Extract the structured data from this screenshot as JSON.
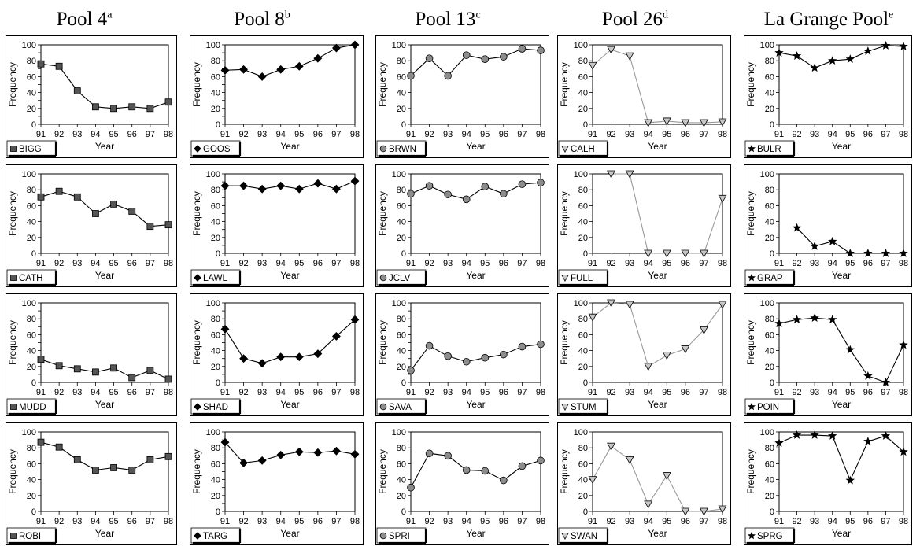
{
  "pools": [
    {
      "name": "Pool 4",
      "note": "a"
    },
    {
      "name": "Pool 8",
      "note": "b"
    },
    {
      "name": "Pool 13",
      "note": "c"
    },
    {
      "name": "Pool 26",
      "note": "d"
    },
    {
      "name": "La Grange Pool",
      "note": "e"
    }
  ],
  "colors": {
    "square": "#555555",
    "diamond": "#000000",
    "circle": "#8c8c8c",
    "triangle": "#c8c8c8",
    "star": "#000000",
    "line_dark": "#000000",
    "line_grey": "#999999"
  },
  "chart_data": [
    {
      "type": "line",
      "pool": 0,
      "row": 0,
      "marker": "square",
      "legend": "BIGG",
      "x": [
        91,
        92,
        93,
        94,
        95,
        96,
        97,
        98
      ],
      "values": [
        76,
        73,
        42,
        22,
        20,
        22,
        20,
        28
      ],
      "xlabel": "Year",
      "ylabel": "Frequency",
      "ylim": [
        0,
        100
      ],
      "yticks": [
        0,
        10,
        20,
        30,
        40,
        50,
        60,
        70,
        80,
        90,
        100
      ],
      "yticklabels": [
        "0",
        "",
        "20",
        "",
        "40",
        "",
        "60",
        "",
        "80",
        "",
        "100"
      ]
    },
    {
      "type": "line",
      "pool": 0,
      "row": 1,
      "marker": "square",
      "legend": "CATH",
      "x": [
        91,
        92,
        93,
        94,
        95,
        96,
        97,
        98
      ],
      "values": [
        71,
        78,
        71,
        50,
        62,
        53,
        34,
        36
      ],
      "xlabel": "Year",
      "ylabel": "Frequency",
      "ylim": [
        0,
        100
      ],
      "yticks": [
        0,
        20,
        40,
        60,
        80,
        100
      ],
      "yticklabels": [
        "0",
        "20",
        "40",
        "60",
        "80",
        "100"
      ]
    },
    {
      "type": "line",
      "pool": 0,
      "row": 2,
      "marker": "square",
      "legend": "MUDD",
      "x": [
        91,
        92,
        93,
        94,
        95,
        96,
        97,
        98
      ],
      "values": [
        29,
        21,
        17,
        13,
        18,
        6,
        15,
        4
      ],
      "xlabel": "Year",
      "ylabel": "Frequency",
      "ylim": [
        0,
        100
      ],
      "yticks": [
        0,
        10,
        20,
        30,
        40,
        50,
        60,
        70,
        80,
        90,
        100
      ],
      "yticklabels": [
        "0",
        "",
        "20",
        "",
        "40",
        "",
        "60",
        "",
        "80",
        "",
        "100"
      ]
    },
    {
      "type": "line",
      "pool": 0,
      "row": 3,
      "marker": "square",
      "legend": "ROBI",
      "x": [
        91,
        92,
        93,
        94,
        95,
        96,
        97,
        98
      ],
      "values": [
        87,
        81,
        65,
        52,
        55,
        52,
        65,
        69
      ],
      "xlabel": "Year",
      "ylabel": "Frequency",
      "ylim": [
        0,
        100
      ],
      "yticks": [
        0,
        20,
        40,
        60,
        80,
        100
      ],
      "yticklabels": [
        "0",
        "20",
        "40",
        "60",
        "80",
        "100"
      ]
    },
    {
      "type": "line",
      "pool": 1,
      "row": 0,
      "marker": "diamond",
      "legend": "GOOS",
      "x": [
        91,
        92,
        93,
        94,
        95,
        96,
        97,
        98
      ],
      "values": [
        68,
        69,
        60,
        69,
        73,
        83,
        96,
        100
      ],
      "xlabel": "Year",
      "ylabel": "Frequency",
      "ylim": [
        0,
        100
      ],
      "yticks": [
        0,
        10,
        20,
        30,
        40,
        50,
        60,
        70,
        80,
        90,
        100
      ],
      "yticklabels": [
        "0",
        "",
        "20",
        "",
        "40",
        "",
        "60",
        "",
        "80",
        "",
        "100"
      ]
    },
    {
      "type": "line",
      "pool": 1,
      "row": 1,
      "marker": "diamond",
      "legend": "LAWL",
      "x": [
        91,
        92,
        93,
        94,
        95,
        96,
        97,
        98
      ],
      "values": [
        85,
        85,
        81,
        85,
        81,
        88,
        81,
        91
      ],
      "xlabel": "Year",
      "ylabel": "Frequency",
      "ylim": [
        0,
        100
      ],
      "yticks": [
        0,
        10,
        20,
        30,
        40,
        50,
        60,
        70,
        80,
        90,
        100
      ],
      "yticklabels": [
        "0",
        "",
        "20",
        "",
        "40",
        "",
        "60",
        "",
        "80",
        "",
        "100"
      ]
    },
    {
      "type": "line",
      "pool": 1,
      "row": 2,
      "marker": "diamond",
      "legend": "SHAD",
      "x": [
        91,
        92,
        93,
        94,
        95,
        96,
        97,
        98
      ],
      "values": [
        67,
        30,
        24,
        32,
        32,
        36,
        58,
        79
      ],
      "xlabel": "Year",
      "ylabel": "Frequency",
      "ylim": [
        0,
        100
      ],
      "yticks": [
        0,
        10,
        20,
        30,
        40,
        50,
        60,
        70,
        80,
        90,
        100
      ],
      "yticklabels": [
        "0",
        "",
        "20",
        "",
        "40",
        "",
        "60",
        "",
        "80",
        "",
        "100"
      ]
    },
    {
      "type": "line",
      "pool": 1,
      "row": 3,
      "marker": "diamond",
      "legend": "TARG",
      "x": [
        91,
        92,
        93,
        94,
        95,
        96,
        97,
        98
      ],
      "values": [
        87,
        61,
        64,
        71,
        75,
        74,
        76,
        72
      ],
      "xlabel": "Year",
      "ylabel": "Frequency",
      "ylim": [
        0,
        100
      ],
      "yticks": [
        0,
        10,
        20,
        30,
        40,
        50,
        60,
        70,
        80,
        90,
        100
      ],
      "yticklabels": [
        "0",
        "",
        "20",
        "",
        "40",
        "",
        "60",
        "",
        "80",
        "",
        "100"
      ]
    },
    {
      "type": "line",
      "pool": 2,
      "row": 0,
      "marker": "circle",
      "legend": "BRWN",
      "x": [
        91,
        92,
        93,
        94,
        95,
        96,
        97,
        98
      ],
      "values": [
        61,
        83,
        61,
        87,
        82,
        85,
        95,
        93
      ],
      "xlabel": "Year",
      "ylabel": "Frequency",
      "ylim": [
        0,
        100
      ],
      "yticks": [
        0,
        20,
        40,
        60,
        80,
        100
      ],
      "yticklabels": [
        "0",
        "20",
        "40",
        "60",
        "80",
        "100"
      ]
    },
    {
      "type": "line",
      "pool": 2,
      "row": 1,
      "marker": "circle",
      "legend": "JCLV",
      "x": [
        91,
        92,
        93,
        94,
        95,
        96,
        97,
        98
      ],
      "values": [
        75,
        85,
        74,
        68,
        84,
        75,
        87,
        89
      ],
      "xlabel": "Year",
      "ylabel": "Frequency",
      "ylim": [
        0,
        100
      ],
      "yticks": [
        0,
        20,
        40,
        60,
        80,
        100
      ],
      "yticklabels": [
        "0",
        "20",
        "40",
        "60",
        "80",
        "100"
      ]
    },
    {
      "type": "line",
      "pool": 2,
      "row": 2,
      "marker": "circle",
      "legend": "SAVA",
      "x": [
        91,
        92,
        93,
        94,
        95,
        96,
        97,
        98
      ],
      "values": [
        15,
        46,
        33,
        26,
        31,
        35,
        45,
        48
      ],
      "xlabel": "Year",
      "ylabel": "Frequency",
      "ylim": [
        0,
        100
      ],
      "yticks": [
        0,
        10,
        20,
        30,
        40,
        50,
        60,
        70,
        80,
        90,
        100
      ],
      "yticklabels": [
        "0",
        "",
        "20",
        "",
        "40",
        "",
        "60",
        "",
        "80",
        "",
        "100"
      ]
    },
    {
      "type": "line",
      "pool": 2,
      "row": 3,
      "marker": "circle",
      "legend": "SPRI",
      "x": [
        91,
        92,
        93,
        94,
        95,
        96,
        97,
        98
      ],
      "values": [
        30,
        73,
        70,
        52,
        51,
        39,
        57,
        64
      ],
      "xlabel": "Year",
      "ylabel": "Frequency",
      "ylim": [
        0,
        100
      ],
      "yticks": [
        0,
        20,
        40,
        60,
        80,
        100
      ],
      "yticklabels": [
        "0",
        "20",
        "40",
        "60",
        "80",
        "100"
      ]
    },
    {
      "type": "line",
      "pool": 3,
      "row": 0,
      "marker": "triangle",
      "legend": "CALH",
      "x": [
        91,
        92,
        93,
        94,
        95,
        96,
        97,
        98
      ],
      "values": [
        74,
        94,
        86,
        2,
        4,
        2,
        2,
        3
      ],
      "xlabel": "Year",
      "ylabel": "Frequency",
      "ylim": [
        0,
        100
      ],
      "yticks": [
        0,
        20,
        40,
        60,
        80,
        100
      ],
      "yticklabels": [
        "0",
        "20",
        "40",
        "60",
        "80",
        "100"
      ]
    },
    {
      "type": "line",
      "pool": 3,
      "row": 1,
      "marker": "triangle",
      "legend": "FULL",
      "x": [
        91,
        92,
        93,
        94,
        95,
        96,
        97,
        98
      ],
      "values": [
        null,
        100,
        100,
        0,
        0,
        0,
        0,
        69
      ],
      "xlabel": "Year",
      "ylabel": "Frequency",
      "ylim": [
        0,
        100
      ],
      "yticks": [
        0,
        20,
        40,
        60,
        80,
        100
      ],
      "yticklabels": [
        "0",
        "20",
        "40",
        "60",
        "80",
        "100"
      ]
    },
    {
      "type": "line",
      "pool": 3,
      "row": 2,
      "marker": "triangle",
      "legend": "STUM",
      "x": [
        91,
        92,
        93,
        94,
        95,
        96,
        97,
        98
      ],
      "values": [
        82,
        100,
        98,
        20,
        34,
        42,
        66,
        98
      ],
      "xlabel": "Year",
      "ylabel": "Frequency",
      "ylim": [
        0,
        100
      ],
      "yticks": [
        0,
        20,
        40,
        60,
        80,
        100
      ],
      "yticklabels": [
        "0",
        "20",
        "40",
        "60",
        "80",
        "100"
      ]
    },
    {
      "type": "line",
      "pool": 3,
      "row": 3,
      "marker": "triangle",
      "legend": "SWAN",
      "x": [
        91,
        92,
        93,
        94,
        95,
        96,
        97,
        98
      ],
      "values": [
        40,
        82,
        65,
        9,
        45,
        0,
        0,
        3
      ],
      "xlabel": "Year",
      "ylabel": "Frequency",
      "ylim": [
        0,
        100
      ],
      "yticks": [
        0,
        20,
        40,
        60,
        80,
        100
      ],
      "yticklabels": [
        "0",
        "20",
        "40",
        "60",
        "80",
        "100"
      ]
    },
    {
      "type": "line",
      "pool": 4,
      "row": 0,
      "marker": "star",
      "legend": "BULR",
      "x": [
        91,
        92,
        93,
        94,
        95,
        96,
        97,
        98
      ],
      "values": [
        90,
        86,
        71,
        80,
        82,
        92,
        99,
        98
      ],
      "xlabel": "Year",
      "ylabel": "Frequency",
      "ylim": [
        0,
        100
      ],
      "yticks": [
        0,
        20,
        40,
        60,
        80,
        100
      ],
      "yticklabels": [
        "0",
        "20",
        "40",
        "60",
        "80",
        "100"
      ]
    },
    {
      "type": "line",
      "pool": 4,
      "row": 1,
      "marker": "star",
      "legend": "GRAP",
      "x": [
        91,
        92,
        93,
        94,
        95,
        96,
        97,
        98
      ],
      "values": [
        null,
        32,
        9,
        15,
        0,
        0,
        0,
        0
      ],
      "xlabel": "Year",
      "ylabel": "Frequency",
      "ylim": [
        0,
        100
      ],
      "yticks": [
        0,
        20,
        40,
        60,
        80,
        100
      ],
      "yticklabels": [
        "0",
        "20",
        "40",
        "60",
        "80",
        "100"
      ]
    },
    {
      "type": "line",
      "pool": 4,
      "row": 2,
      "marker": "star",
      "legend": "POIN",
      "x": [
        91,
        92,
        93,
        94,
        95,
        96,
        97,
        98
      ],
      "values": [
        74,
        79,
        81,
        79,
        41,
        8,
        0,
        47
      ],
      "xlabel": "Year",
      "ylabel": "Frequency",
      "ylim": [
        0,
        100
      ],
      "yticks": [
        0,
        20,
        40,
        60,
        80,
        100
      ],
      "yticklabels": [
        "0",
        "20",
        "40",
        "60",
        "80",
        "100"
      ]
    },
    {
      "type": "line",
      "pool": 4,
      "row": 3,
      "marker": "star",
      "legend": "SPRG",
      "x": [
        91,
        92,
        93,
        94,
        95,
        96,
        97,
        98
      ],
      "values": [
        86,
        96,
        96,
        95,
        39,
        88,
        95,
        75
      ],
      "xlabel": "Year",
      "ylabel": "Frequency",
      "ylim": [
        0,
        100
      ],
      "yticks": [
        0,
        20,
        40,
        60,
        80,
        100
      ],
      "yticklabels": [
        "0",
        "20",
        "40",
        "60",
        "80",
        "100"
      ]
    }
  ]
}
